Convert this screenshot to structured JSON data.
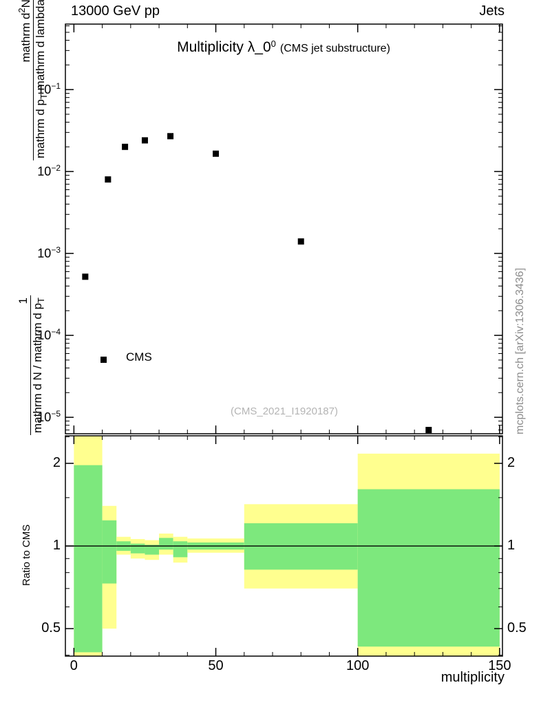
{
  "header": {
    "left": "13000 GeV pp",
    "right": "Jets"
  },
  "title_block": {
    "main": "Multiplicity λ_0",
    "sup": "0",
    "note": "(CMS jet substructure)"
  },
  "watermark": "(CMS_2021_I1920187)",
  "credit": "mcplots.cern.ch [arXiv:1306.3436]",
  "legend": {
    "label": "CMS"
  },
  "ylabel_block": {
    "top_num_a": "mathrm d",
    "top_num_sup": "2",
    "top_num_b": "N",
    "top_den_a": "mathrm d p",
    "top_den_sub": "T",
    "top_den_b": " mathrm d lambda",
    "bot_num": "1",
    "bot_den_a": "mathrm d N / mathrm d p",
    "bot_den_sub": "T"
  },
  "colors": {
    "band_yellow": "#ffff8f",
    "band_green": "#7de87d",
    "marker_black": "#000000",
    "credit_gray": "#8c8c8c",
    "watermark_gray": "#b4b4b4"
  },
  "chart_data": [
    {
      "type": "scatter",
      "title": "Multiplicity λ_0^0 (CMS jet substructure)",
      "series_name": "CMS",
      "xlabel": "multiplicity",
      "ylabel": "(1 / dN/dp_T) d²N / (dp_T dlambda)",
      "xscale": "linear",
      "yscale": "log",
      "xlim": [
        -3,
        151
      ],
      "ylim": [
        6.3e-06,
        0.63
      ],
      "x": [
        4,
        12,
        18,
        25,
        34,
        50,
        80,
        125
      ],
      "y": [
        0.00052,
        0.008,
        0.02,
        0.024,
        0.027,
        0.0165,
        0.0014,
        7e-06
      ],
      "marker": "filled-square",
      "xticks_major": [
        0,
        50,
        100,
        150
      ],
      "xtick_minor_step": 10,
      "ytick_labels": [
        {
          "v": 0.1,
          "base": "10",
          "exp": "−1"
        },
        {
          "v": 0.01,
          "base": "10",
          "exp": "−2"
        },
        {
          "v": 0.001,
          "base": "10",
          "exp": "−3"
        },
        {
          "v": 0.0001,
          "base": "10",
          "exp": "−4"
        },
        {
          "v": 1e-05,
          "base": "10",
          "exp": "−5"
        }
      ]
    },
    {
      "type": "ratio-bands",
      "ylabel": "Ratio to CMS",
      "yscale": "log",
      "ylim": [
        0.397,
        2.52
      ],
      "line_at": 1,
      "yticks": [
        {
          "v": 2,
          "label": "2"
        },
        {
          "v": 1,
          "label": "1"
        },
        {
          "v": 0.5,
          "label": "0.5"
        }
      ],
      "yticks_minor": [
        0.4,
        0.6,
        0.7,
        0.8,
        0.9,
        1.5,
        2.5
      ],
      "bands": [
        {
          "x0": 0,
          "x1": 10,
          "yellow": [
            0.397,
            2.52
          ],
          "green": [
            0.41,
            1.97
          ]
        },
        {
          "x0": 10,
          "x1": 15,
          "yellow": [
            0.5,
            1.4
          ],
          "green": [
            0.73,
            1.24
          ]
        },
        {
          "x0": 15,
          "x1": 20,
          "yellow": [
            0.93,
            1.08
          ],
          "green": [
            0.96,
            1.04
          ]
        },
        {
          "x0": 20,
          "x1": 25,
          "yellow": [
            0.9,
            1.06
          ],
          "green": [
            0.94,
            1.02
          ]
        },
        {
          "x0": 25,
          "x1": 30,
          "yellow": [
            0.89,
            1.05
          ],
          "green": [
            0.93,
            1.01
          ]
        },
        {
          "x0": 30,
          "x1": 35,
          "yellow": [
            0.93,
            1.11
          ],
          "green": [
            0.97,
            1.07
          ]
        },
        {
          "x0": 35,
          "x1": 40,
          "yellow": [
            0.87,
            1.08
          ],
          "green": [
            0.91,
            1.04
          ]
        },
        {
          "x0": 40,
          "x1": 60,
          "yellow": [
            0.945,
            1.065
          ],
          "green": [
            0.97,
            1.03
          ]
        },
        {
          "x0": 60,
          "x1": 100,
          "yellow": [
            0.7,
            1.42
          ],
          "green": [
            0.82,
            1.21
          ]
        },
        {
          "x0": 100,
          "x1": 150,
          "yellow": [
            0.38,
            2.17
          ],
          "green": [
            0.43,
            1.61
          ]
        }
      ]
    }
  ]
}
